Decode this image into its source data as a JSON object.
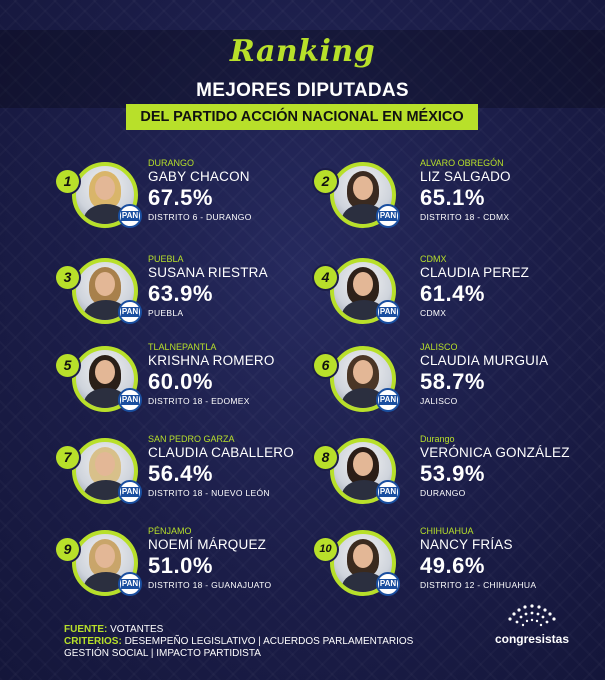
{
  "header": {
    "script_title": "Ranking",
    "headline": "MEJORES DIPUTADAS",
    "subheadline": "DEL PARTIDO ACCIÓN NACIONAL EN MÉXICO"
  },
  "pan_label": "PAN",
  "entries": [
    {
      "rank": "1",
      "region": "DURANGO",
      "name": "GABY CHACON",
      "percent": "67.5%",
      "district": "DISTRITO 6 - DURANGO",
      "hair": "#d9b56a"
    },
    {
      "rank": "2",
      "region": "ALVARO OBREGÓN",
      "name": "LIZ SALGADO",
      "percent": "65.1%",
      "district": "DISTRITO 18 - CDMX",
      "hair": "#3a2a20"
    },
    {
      "rank": "3",
      "region": "PUEBLA",
      "name": "SUSANA RIESTRA",
      "percent": "63.9%",
      "district": "PUEBLA",
      "hair": "#a8804c"
    },
    {
      "rank": "4",
      "region": "CDMX",
      "name": "CLAUDIA PEREZ",
      "percent": "61.4%",
      "district": "CDMX",
      "hair": "#2e2119"
    },
    {
      "rank": "5",
      "region": "TLALNEPANTLA",
      "name": "KRISHNA  ROMERO",
      "percent": "60.0%",
      "district": "DISTRITO 18 - EDOMEX",
      "hair": "#2a1f18"
    },
    {
      "rank": "6",
      "region": "JALISCO",
      "name": "CLAUDIA MURGUIA",
      "percent": "58.7%",
      "district": "JALISCO",
      "hair": "#4a3626"
    },
    {
      "rank": "7",
      "region": "SAN PEDRO GARZA",
      "name": "CLAUDIA CABALLERO",
      "percent": "56.4%",
      "district": "DISTRITO 18 - NUEVO LEÓN",
      "hair": "#d8c08a"
    },
    {
      "rank": "8",
      "region": "Durango",
      "name": "VERÓNICA GONZÁLEZ",
      "percent": "53.9%",
      "district": "DURANGO",
      "hair": "#2b1d16"
    },
    {
      "rank": "9",
      "region": "PÉNJAMO",
      "name": "NOEMÍ MÁRQUEZ",
      "percent": "51.0%",
      "district": "DISTRITO 18 - GUANAJUATO",
      "hair": "#c9a56a"
    },
    {
      "rank": "10",
      "region": "CHIHUAHUA",
      "name": "NANCY FRÍAS",
      "percent": "49.6%",
      "district": "DISTRITO 12 - CHIHUAHUA",
      "hair": "#3a2a1e"
    }
  ],
  "footer": {
    "fuente_label": "FUENTE:",
    "fuente_value": "VOTANTES",
    "criterios_label": "CRITERIOS:",
    "criterios_value": "DESEMPEÑO LEGISLATIVO | ACUERDOS PARLAMENTARIOS",
    "criterios_value_2": "GESTIÓN SOCIAL | IMPACTO PARTIDISTA"
  },
  "brand": {
    "name": "congresistas"
  },
  "colors": {
    "accent": "#b8e02a",
    "background": "#1b1d48",
    "pan_blue": "#1a4fa0"
  }
}
